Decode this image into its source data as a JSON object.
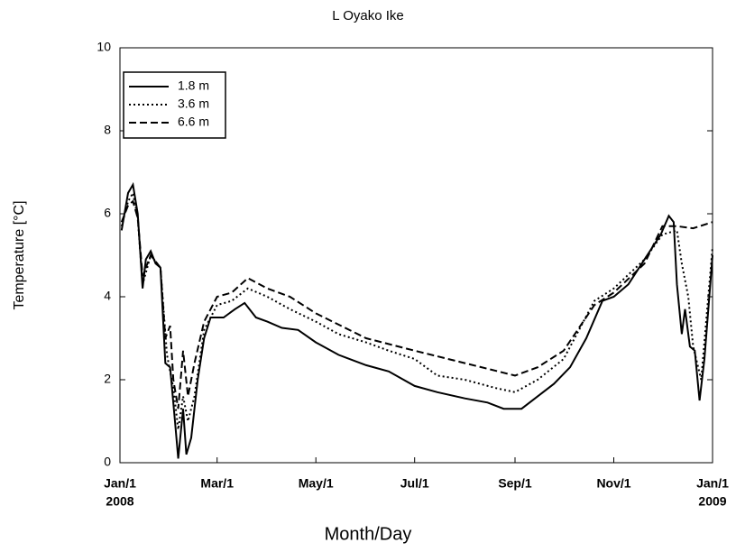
{
  "chart_data": {
    "type": "line",
    "title": "L Oyako Ike",
    "x_label": "Month/Day",
    "y_label": "Temperature [°C]",
    "xlim": [
      "2008-01-01",
      "2009-01-01"
    ],
    "xticks": [
      {
        "value": "2008-01-01",
        "label": "Jan/1"
      },
      {
        "value": "2008-03-01",
        "label": "Mar/1"
      },
      {
        "value": "2008-05-01",
        "label": "May/1"
      },
      {
        "value": "2008-07-01",
        "label": "Jul/1"
      },
      {
        "value": "2008-09-01",
        "label": "Sep/1"
      },
      {
        "value": "2008-11-01",
        "label": "Nov/1"
      },
      {
        "value": "2009-01-01",
        "label": "Jan/1"
      }
    ],
    "year_labels": [
      {
        "value": "2008-01-01",
        "label": "2008"
      },
      {
        "value": "2009-01-01",
        "label": "2009"
      }
    ],
    "ylim": [
      0,
      10
    ],
    "yticks": [
      0,
      2,
      4,
      6,
      8,
      10
    ],
    "grid": false,
    "legend": "upper left",
    "series": [
      {
        "name": "1.8 m",
        "color": "#000000",
        "dash": "solid",
        "x": [
          "2008-01-02",
          "2008-01-06",
          "2008-01-09",
          "2008-01-12",
          "2008-01-15",
          "2008-01-17",
          "2008-01-20",
          "2008-01-23",
          "2008-01-26",
          "2008-01-29",
          "2008-02-01",
          "2008-02-04",
          "2008-02-06",
          "2008-02-09",
          "2008-02-11",
          "2008-02-14",
          "2008-02-18",
          "2008-02-22",
          "2008-02-26",
          "2008-03-05",
          "2008-03-12",
          "2008-03-18",
          "2008-03-25",
          "2008-04-01",
          "2008-04-10",
          "2008-04-20",
          "2008-05-01",
          "2008-05-15",
          "2008-06-01",
          "2008-06-15",
          "2008-07-01",
          "2008-07-15",
          "2008-08-01",
          "2008-08-15",
          "2008-08-25",
          "2008-09-05",
          "2008-09-15",
          "2008-09-25",
          "2008-10-05",
          "2008-10-15",
          "2008-10-25",
          "2008-11-01",
          "2008-11-10",
          "2008-11-20",
          "2008-11-30",
          "2008-12-05",
          "2008-12-08",
          "2008-12-10",
          "2008-12-13",
          "2008-12-15",
          "2008-12-18",
          "2008-12-21",
          "2008-12-24",
          "2008-12-27",
          "2008-12-29",
          "2009-01-01"
        ],
        "values": [
          5.6,
          6.5,
          6.7,
          6.0,
          4.2,
          4.9,
          5.1,
          4.8,
          4.7,
          2.4,
          2.3,
          1.0,
          0.1,
          1.3,
          0.2,
          0.6,
          2.0,
          3.0,
          3.5,
          3.5,
          3.7,
          3.85,
          3.5,
          3.4,
          3.25,
          3.2,
          2.9,
          2.6,
          2.35,
          2.2,
          1.85,
          1.7,
          1.55,
          1.45,
          1.3,
          1.3,
          1.6,
          1.9,
          2.3,
          3.0,
          3.9,
          4.0,
          4.3,
          4.9,
          5.5,
          5.95,
          5.8,
          4.3,
          3.1,
          3.7,
          2.8,
          2.7,
          1.5,
          2.5,
          3.5,
          5.0
        ]
      },
      {
        "name": "3.6 m",
        "color": "#000000",
        "dash": "dotted",
        "x": [
          "2008-01-02",
          "2008-01-06",
          "2008-01-09",
          "2008-01-12",
          "2008-01-15",
          "2008-01-20",
          "2008-01-26",
          "2008-01-30",
          "2008-02-03",
          "2008-02-06",
          "2008-02-09",
          "2008-02-12",
          "2008-02-16",
          "2008-02-22",
          "2008-03-01",
          "2008-03-10",
          "2008-03-20",
          "2008-04-01",
          "2008-04-15",
          "2008-05-01",
          "2008-05-15",
          "2008-06-01",
          "2008-06-15",
          "2008-07-01",
          "2008-07-15",
          "2008-08-01",
          "2008-08-20",
          "2008-09-01",
          "2008-09-15",
          "2008-10-01",
          "2008-10-20",
          "2008-11-01",
          "2008-11-20",
          "2008-12-01",
          "2008-12-10",
          "2008-12-13",
          "2008-12-17",
          "2008-12-20",
          "2008-12-25",
          "2009-01-01"
        ],
        "values": [
          5.7,
          6.3,
          6.5,
          5.9,
          4.3,
          5.0,
          4.7,
          2.6,
          1.8,
          0.8,
          1.6,
          1.0,
          1.6,
          3.2,
          3.8,
          3.9,
          4.2,
          4.0,
          3.7,
          3.4,
          3.1,
          2.9,
          2.7,
          2.5,
          2.1,
          2.0,
          1.8,
          1.7,
          2.0,
          2.5,
          3.9,
          4.2,
          4.9,
          5.5,
          5.6,
          4.8,
          4.0,
          2.8,
          2.0,
          5.2
        ]
      },
      {
        "name": "6.6 m",
        "color": "#000000",
        "dash": "dashed",
        "x": [
          "2008-01-02",
          "2008-01-06",
          "2008-01-09",
          "2008-01-12",
          "2008-01-15",
          "2008-01-20",
          "2008-01-26",
          "2008-01-29",
          "2008-02-01",
          "2008-02-03",
          "2008-02-06",
          "2008-02-09",
          "2008-02-12",
          "2008-02-16",
          "2008-02-22",
          "2008-03-01",
          "2008-03-10",
          "2008-03-20",
          "2008-04-01",
          "2008-04-15",
          "2008-05-01",
          "2008-06-01",
          "2008-07-01",
          "2008-08-01",
          "2008-09-01",
          "2008-09-15",
          "2008-10-01",
          "2008-10-20",
          "2008-11-01",
          "2008-11-20",
          "2008-12-01",
          "2008-12-10",
          "2008-12-20",
          "2009-01-01"
        ],
        "values": [
          5.8,
          6.2,
          6.3,
          5.9,
          4.5,
          5.0,
          4.7,
          3.0,
          3.3,
          2.0,
          1.3,
          2.7,
          1.6,
          2.4,
          3.4,
          4.0,
          4.1,
          4.45,
          4.2,
          4.0,
          3.6,
          3.0,
          2.7,
          2.4,
          2.1,
          2.3,
          2.7,
          3.8,
          4.1,
          4.8,
          5.7,
          5.7,
          5.65,
          5.8
        ]
      }
    ]
  }
}
